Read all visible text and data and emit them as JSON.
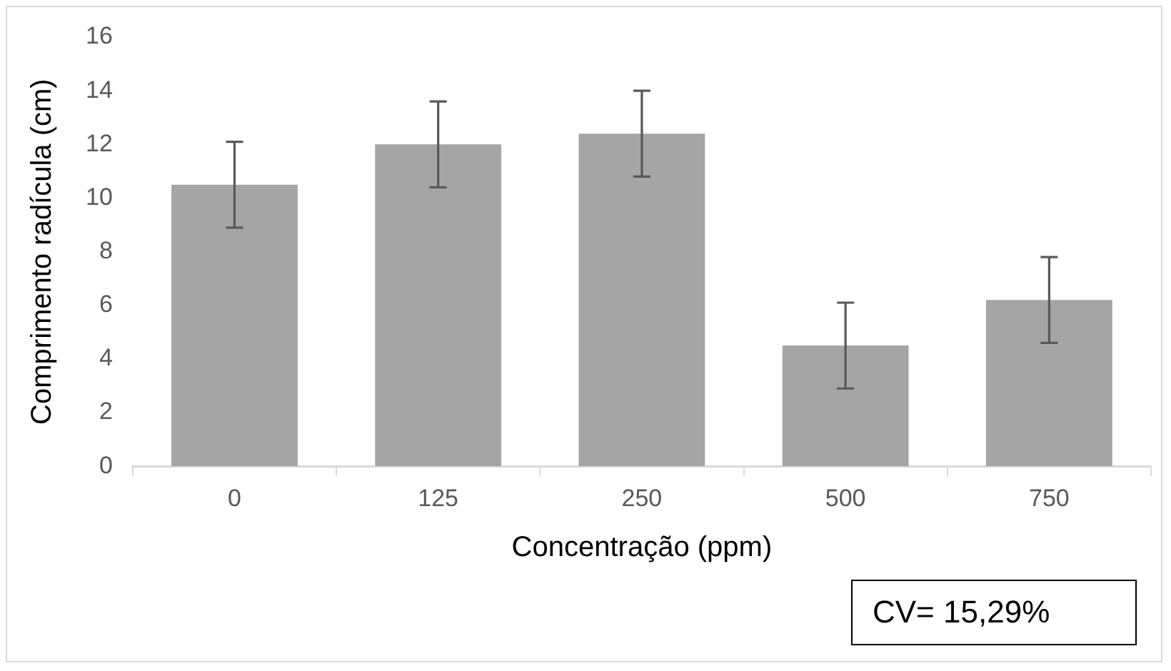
{
  "chart_data": {
    "type": "bar",
    "xlabel": "Concentração (ppm)",
    "ylabel": "Comprimento radícula (cm)",
    "categories": [
      "0",
      "125",
      "250",
      "500",
      "750"
    ],
    "values": [
      10.5,
      12.0,
      12.4,
      4.5,
      6.2
    ],
    "errors": [
      1.6,
      1.6,
      1.6,
      1.6,
      1.6
    ],
    "color": "#a5a5a5",
    "ylim": [
      0,
      16
    ],
    "yticks": [
      0,
      2,
      4,
      6,
      8,
      10,
      12,
      14,
      16
    ],
    "grid": false,
    "legend": false,
    "annotations": [
      "CV= 15,29%"
    ]
  }
}
